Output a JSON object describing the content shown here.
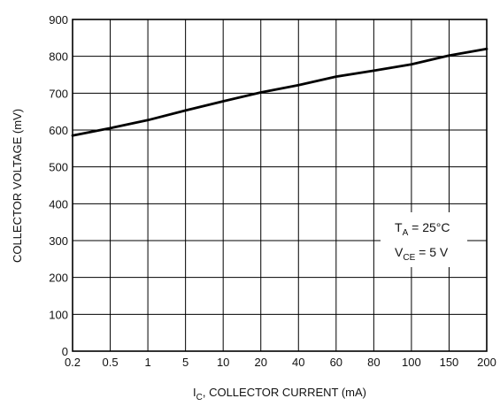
{
  "chart_data": {
    "type": "line",
    "title": "",
    "xlabel": {
      "symbol": "I",
      "subscript": "C",
      "text": ", COLLECTOR CURRENT (mA)"
    },
    "ylabel": "COLLECTOR VOLTAGE (mV)",
    "x_ticks": [
      "0.2",
      "0.5",
      "1",
      "5",
      "10",
      "20",
      "40",
      "60",
      "80",
      "100",
      "150",
      "200"
    ],
    "y_ticks": [
      0,
      100,
      200,
      300,
      400,
      500,
      600,
      700,
      800,
      900
    ],
    "ylim": [
      0,
      900
    ],
    "grid": true,
    "series": [
      {
        "x": [
          "0.2",
          "0.5",
          "1",
          "5",
          "10",
          "20",
          "40",
          "60",
          "80",
          "100",
          "150",
          "200"
        ],
        "values": [
          585,
          605,
          627,
          653,
          678,
          702,
          722,
          745,
          761,
          778,
          802,
          820
        ]
      }
    ],
    "annotations": [
      {
        "symbol": "T",
        "subscript": "A",
        "text": " = 25°C"
      },
      {
        "symbol": "V",
        "subscript": "CE",
        "text": " = 5 V"
      }
    ],
    "colors": {
      "line": "#000000",
      "grid": "#000000"
    }
  }
}
